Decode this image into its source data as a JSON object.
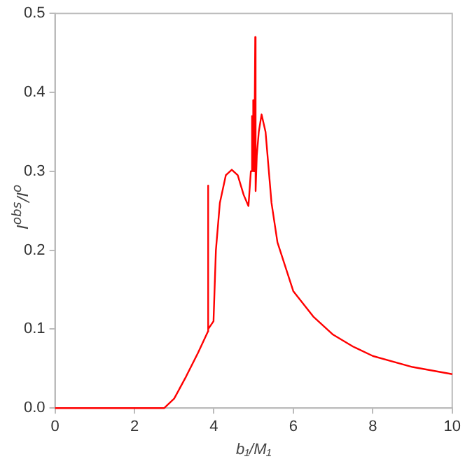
{
  "chart_data": {
    "type": "line",
    "xlabel": "b₁/M₁",
    "ylabel": "I$^{obs}$/I$^{o}$",
    "series": [
      {
        "color": "#ff0000",
        "x": [
          0,
          2.75,
          3,
          3.3,
          3.6,
          3.85,
          3.851,
          3.86,
          3.99,
          4.05,
          4.15,
          4.3,
          4.45,
          4.6,
          4.75,
          4.87,
          4.93,
          4.96,
          4.98,
          4.99,
          5.0,
          5.02,
          5.04,
          5.05,
          5.08,
          5.13,
          5.2,
          5.3,
          5.45,
          5.6,
          6.0,
          6.5,
          7,
          7.5,
          8,
          9,
          10
        ],
        "values": [
          0,
          0,
          0.012,
          0.04,
          0.07,
          0.097,
          0.282,
          0.1,
          0.11,
          0.2,
          0.26,
          0.295,
          0.302,
          0.295,
          0.27,
          0.256,
          0.3,
          0.37,
          0.31,
          0.39,
          0.3,
          0.33,
          0.47,
          0.275,
          0.32,
          0.35,
          0.372,
          0.35,
          0.26,
          0.21,
          0.148,
          0.116,
          0.093,
          0.078,
          0.066,
          0.052,
          0.043
        ]
      }
    ],
    "xlim": [
      0,
      10
    ],
    "xticks": [
      0,
      2,
      4,
      6,
      8,
      10
    ],
    "ylim": [
      0,
      0.5
    ],
    "yticks": [
      {
        "value": 0,
        "label": "0.0"
      },
      {
        "value": 0.1,
        "label": "0.1"
      },
      {
        "value": 0.2,
        "label": "0.2"
      },
      {
        "value": 0.3,
        "label": "0.3"
      },
      {
        "value": 0.4,
        "label": "0.4"
      },
      {
        "value": 0.5,
        "label": "0.5"
      }
    ],
    "grid": false,
    "legend": false,
    "marker": "none",
    "line_style": "solid"
  }
}
